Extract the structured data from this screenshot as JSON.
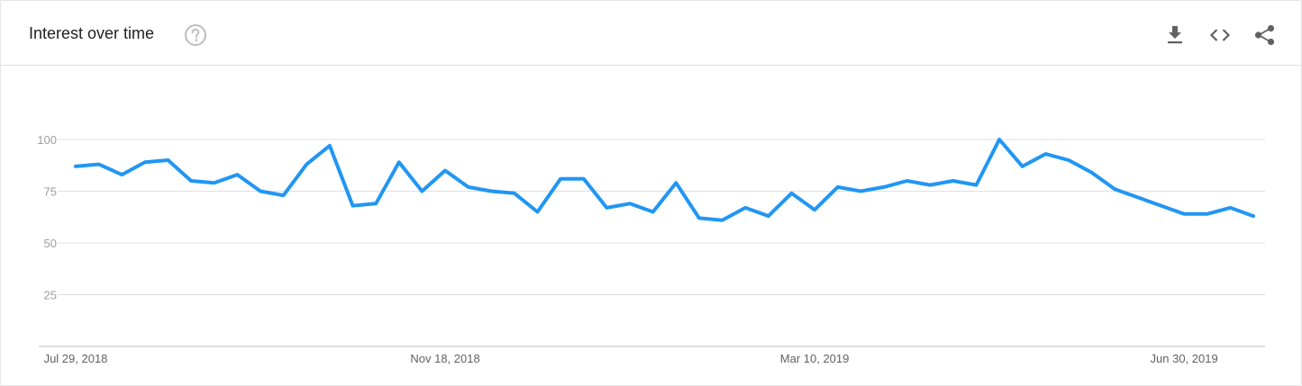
{
  "header": {
    "title": "Interest over time",
    "icons": {
      "help": "help-circle-icon",
      "download": "download-icon",
      "embed": "code-icon",
      "share": "share-icon"
    }
  },
  "colors": {
    "line": "#2196f3",
    "grid": "#e0e0e0",
    "axis": "#bdbdbd",
    "icon": "#616161",
    "help": "#bdbdbd"
  },
  "chart_data": {
    "type": "line",
    "title": "",
    "xlabel": "",
    "ylabel": "",
    "ylim": [
      0,
      100
    ],
    "yticks": [
      25,
      50,
      75,
      100
    ],
    "ytick_labels": [
      "25",
      "50",
      "75",
      "100"
    ],
    "grid": true,
    "xtick_labels": [
      {
        "label": "Jul 29, 2018",
        "index": 0
      },
      {
        "label": "Nov 18, 2018",
        "index": 16
      },
      {
        "label": "Mar 10, 2019",
        "index": 32
      },
      {
        "label": "Jun 30, 2019",
        "index": 48
      }
    ],
    "series": [
      {
        "values": [
          87,
          88,
          83,
          89,
          90,
          80,
          79,
          83,
          75,
          73,
          88,
          97,
          68,
          69,
          89,
          75,
          85,
          77,
          75,
          74,
          65,
          81,
          81,
          67,
          69,
          65,
          79,
          62,
          61,
          67,
          63,
          74,
          66,
          77,
          75,
          77,
          80,
          78,
          80,
          78,
          100,
          87,
          93,
          90,
          84,
          76,
          72,
          68,
          64,
          64,
          67,
          63
        ]
      }
    ]
  }
}
